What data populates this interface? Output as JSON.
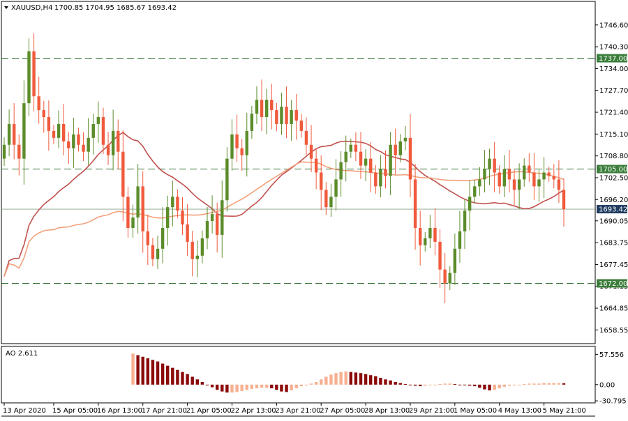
{
  "header": {
    "symbol": "XAUUSD,H4",
    "ohlc": "1700.85 1704.95 1685.67 1693.42"
  },
  "colors": {
    "background": "#ffffff",
    "border": "#000000",
    "bull": "#5b8c2a",
    "bear": "#f05a3c",
    "level_line": "#2e6b2e",
    "level_label_bg": "#3a7d3a",
    "price_label_bg": "#1e3a5f",
    "ma_slow": "#f2a07b",
    "ma_fast": "#c0504d",
    "ao_up": "#f7b091",
    "ao_down": "#8b0a0a"
  },
  "price_axis": {
    "range": [
      1655,
      1753
    ],
    "ticks": [
      "1746.60",
      "1740.30",
      "1734.00",
      "1727.70",
      "1721.40",
      "1715.10",
      "1708.80",
      "1702.50",
      "1696.20",
      "1690.05",
      "1683.75",
      "1677.45",
      "1671.15",
      "1664.85",
      "1658.55"
    ]
  },
  "ao_axis": {
    "range": [
      -32,
      62
    ],
    "ticks": [
      "57.556",
      "0.00",
      "-30.795"
    ]
  },
  "levels": [
    {
      "value": 1737.0,
      "label": "1737.00"
    },
    {
      "value": 1705.0,
      "label": "1705.00"
    },
    {
      "value": 1672.0,
      "label": "1672.00"
    }
  ],
  "current_price": {
    "value": 1693.42,
    "label": "1693.42"
  },
  "ao_label": "AO 2.611",
  "x_axis": {
    "labels": [
      {
        "text": "13 Apr 2020",
        "bar": 0
      },
      {
        "text": "15 Apr 05:00",
        "bar": 10
      },
      {
        "text": "16 Apr 13:00",
        "bar": 19
      },
      {
        "text": "17 Apr 21:00",
        "bar": 28
      },
      {
        "text": "21 Apr 05:00",
        "bar": 37
      },
      {
        "text": "22 Apr 13:00",
        "bar": 46
      },
      {
        "text": "23 Apr 21:00",
        "bar": 55
      },
      {
        "text": "27 Apr 05:00",
        "bar": 64
      },
      {
        "text": "28 Apr 13:00",
        "bar": 73
      },
      {
        "text": "29 Apr 21:00",
        "bar": 82
      },
      {
        "text": "1 May 05:00",
        "bar": 91
      },
      {
        "text": "4 May 13:00",
        "bar": 100
      },
      {
        "text": "5 May 21:00",
        "bar": 109
      }
    ]
  },
  "chart_data": {
    "type": "candlestick",
    "title": "XAUUSD,H4",
    "ylim": [
      1655,
      1753
    ],
    "grid": false,
    "closes": [
      1712,
      1718,
      1712,
      1708,
      1724,
      1739,
      1726,
      1722,
      1720,
      1716,
      1714,
      1718,
      1713,
      1711,
      1715,
      1712,
      1710,
      1714,
      1718,
      1720,
      1712,
      1709,
      1716,
      1710,
      1697,
      1688,
      1691,
      1700,
      1687,
      1683,
      1679,
      1682,
      1688,
      1694,
      1697,
      1693,
      1689,
      1684,
      1679,
      1680,
      1685,
      1690,
      1692,
      1686,
      1696,
      1708,
      1715,
      1711,
      1709,
      1716,
      1721,
      1725,
      1720,
      1725,
      1722,
      1718,
      1723,
      1718,
      1722,
      1719,
      1716,
      1712,
      1708,
      1704,
      1699,
      1694,
      1697,
      1702,
      1707,
      1710,
      1712,
      1710,
      1706,
      1708,
      1704,
      1700,
      1705,
      1703,
      1712,
      1709,
      1713,
      1714,
      1702,
      1688,
      1683,
      1685,
      1688,
      1684,
      1676,
      1672,
      1675,
      1682,
      1687,
      1693,
      1697,
      1700,
      1702,
      1705,
      1708,
      1704,
      1700,
      1705,
      1702,
      1699,
      1702,
      1706,
      1704,
      1700,
      1702,
      1704,
      1703,
      1702,
      1699,
      1693.42
    ],
    "ao_values": [
      59,
      56,
      53,
      50,
      47,
      44,
      40,
      36,
      32,
      28,
      24,
      20,
      15,
      10,
      5,
      0,
      -5,
      -10,
      -13,
      -15,
      -15,
      -14,
      -12,
      -10,
      -8,
      -7,
      -6,
      -6,
      -7,
      -10,
      -13,
      -14,
      -11,
      -7,
      -3,
      0,
      2,
      5,
      10,
      15,
      19,
      22,
      24,
      25,
      24,
      23,
      22,
      20,
      18,
      16,
      13,
      10,
      8,
      5,
      3,
      1,
      -1,
      -2,
      -3,
      -2,
      -1,
      0,
      1,
      2,
      2,
      1,
      0,
      -1,
      -2,
      -3,
      -6,
      -9,
      -11,
      -10,
      -7,
      -4,
      -2,
      -1,
      0,
      1,
      2,
      2,
      2,
      3,
      3,
      3,
      3,
      2.611
    ]
  }
}
